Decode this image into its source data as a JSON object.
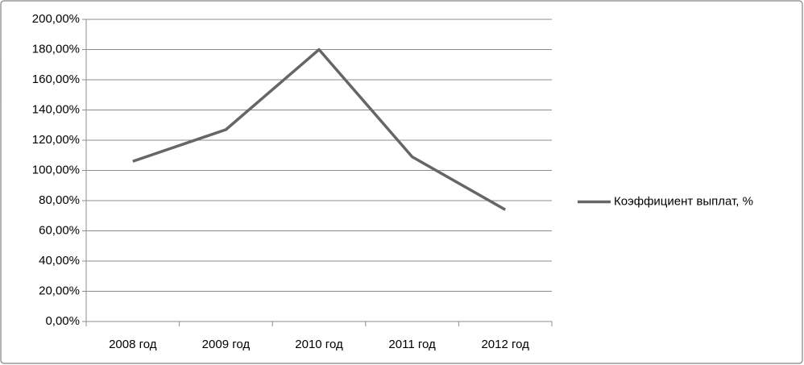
{
  "chart_data": {
    "type": "line",
    "categories": [
      "2008 год",
      "2009 год",
      "2010 год",
      "2011 год",
      "2012 год"
    ],
    "series": [
      {
        "name": "Коэффициент выплат, %",
        "color": "#666666",
        "values": [
          106,
          127,
          180,
          109,
          74
        ]
      }
    ],
    "ylim": [
      0,
      200
    ],
    "yticks": [
      {
        "value": 0,
        "label": "0,00%"
      },
      {
        "value": 20,
        "label": "20,00%"
      },
      {
        "value": 40,
        "label": "40,00%"
      },
      {
        "value": 60,
        "label": "60,00%"
      },
      {
        "value": 80,
        "label": "80,00%"
      },
      {
        "value": 100,
        "label": "100,00%"
      },
      {
        "value": 120,
        "label": "120,00%"
      },
      {
        "value": 140,
        "label": "140,00%"
      },
      {
        "value": 160,
        "label": "160,00%"
      },
      {
        "value": 180,
        "label": "180,00%"
      },
      {
        "value": 200,
        "label": "200,00%"
      }
    ],
    "grid": true,
    "legend": "right"
  }
}
